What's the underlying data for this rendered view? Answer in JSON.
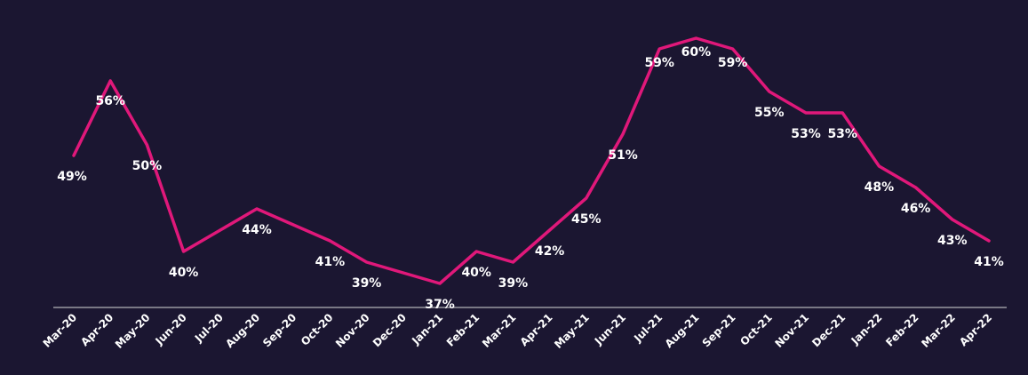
{
  "colors": {
    "background": "#1b1631",
    "line": "#e0187a",
    "text": "#ffffff",
    "axis": "#d9d9d9"
  },
  "chart_data": {
    "type": "line",
    "title": "",
    "xlabel": "",
    "ylabel": "",
    "grid": false,
    "legend": "none",
    "ylim": [
      34,
      62
    ],
    "categories": [
      "Mar-20",
      "Apr-20",
      "May-20",
      "Jun-20",
      "Jul-20",
      "Aug-20",
      "Sep-20",
      "Oct-20",
      "Nov-20",
      "Dec-20",
      "Jan-21",
      "Feb-21",
      "Mar-21",
      "Apr-21",
      "May-21",
      "Jun-21",
      "Jul-21",
      "Aug-21",
      "Sep-21",
      "Oct-21",
      "Nov-21",
      "Dec-21",
      "Jan-22",
      "Feb-22",
      "Mar-22",
      "Apr-22"
    ],
    "series": [
      {
        "values": [
          49,
          56,
          50,
          40,
          42,
          44,
          42.5,
          41,
          39,
          38,
          37,
          40,
          39,
          42,
          45,
          51,
          59,
          60,
          59,
          55,
          53,
          53,
          48,
          46,
          43,
          41
        ],
        "data_labels": [
          "49%",
          "56%",
          "50%",
          "40%",
          "",
          "44%",
          "",
          "41%",
          "39%",
          "",
          "37%",
          "40%",
          "39%",
          "42%",
          "45%",
          "51%",
          "59%",
          "60%",
          "59%",
          "55%",
          "53%",
          "53%",
          "48%",
          "46%",
          "43%",
          "41%"
        ]
      }
    ]
  }
}
